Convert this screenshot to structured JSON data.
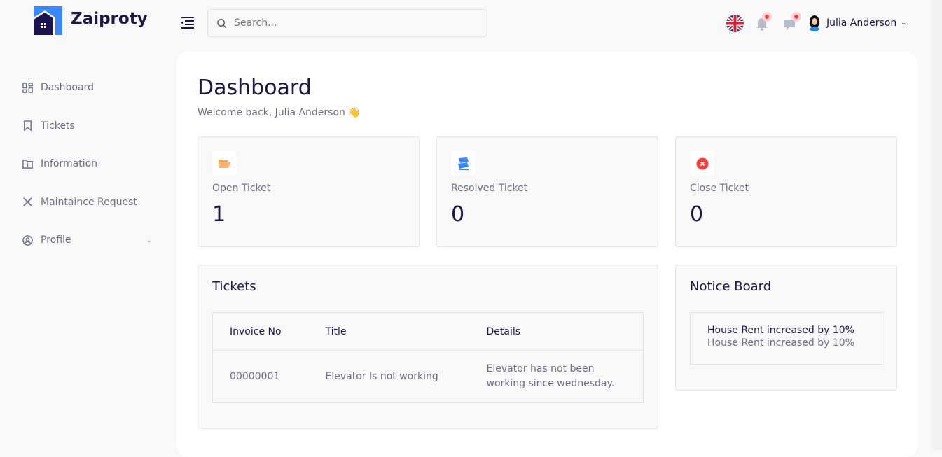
{
  "brand": {
    "name": "Zaiproty"
  },
  "search": {
    "placeholder": "Search..."
  },
  "header": {
    "user_name": "Julia Anderson",
    "language": "uk-flag-icon"
  },
  "sidebar": {
    "items": [
      {
        "label": "Dashboard"
      },
      {
        "label": "Tickets"
      },
      {
        "label": "Information"
      },
      {
        "label": "Maintaince Request"
      },
      {
        "label": "Profile"
      }
    ]
  },
  "main": {
    "title": "Dashboard",
    "welcome": "Welcome back, Julia Anderson 👋",
    "stats": [
      {
        "label": "Open Ticket",
        "value": "1",
        "icon": "folder-open-icon",
        "color": "#ff9f43"
      },
      {
        "label": "Resolved Ticket",
        "value": "0",
        "icon": "ticket-icon",
        "color": "#3a86ff"
      },
      {
        "label": "Close Ticket",
        "value": "0",
        "icon": "close-circle-icon",
        "color": "#ff3b3b"
      }
    ],
    "tickets": {
      "title": "Tickets",
      "columns": [
        "Invoice No",
        "Title",
        "Details"
      ],
      "rows": [
        {
          "invoice": "00000001",
          "title": "Elevator Is not working",
          "details": "Elevator has not been working since wednesday."
        }
      ]
    },
    "notice": {
      "title": "Notice Board",
      "items": [
        {
          "heading": "House Rent increased by 10%",
          "body": "House Rent increased by 10%"
        }
      ]
    }
  }
}
